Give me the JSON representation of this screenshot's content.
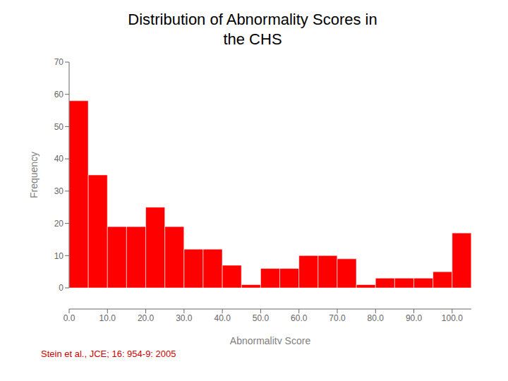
{
  "chart_data": {
    "type": "histogram",
    "title": "Distribution of Abnormality Scores in\nthe CHS",
    "x_label": "Abnormality Score",
    "y_label": "Frequency",
    "bins": [
      0,
      5,
      10,
      15,
      20,
      25,
      30,
      35,
      40,
      45,
      50,
      55,
      60,
      65,
      70,
      75,
      80,
      85,
      90,
      95,
      100,
      105
    ],
    "values": [
      58,
      35,
      19,
      19,
      25,
      19,
      12,
      12,
      7,
      1,
      6,
      6,
      10,
      10,
      9,
      1,
      3,
      3,
      3,
      5,
      17
    ],
    "color": "#FF0000",
    "xlim": [
      0,
      105
    ],
    "xticks": [
      {
        "value": 0,
        "label": "0.0"
      },
      {
        "value": 10,
        "label": "10.0"
      },
      {
        "value": 20,
        "label": "20.0"
      },
      {
        "value": 30,
        "label": "30.0"
      },
      {
        "value": 40,
        "label": "40.0"
      },
      {
        "value": 50,
        "label": "50.0"
      },
      {
        "value": 60,
        "label": "60.0"
      },
      {
        "value": 70,
        "label": "70.0"
      },
      {
        "value": 80,
        "label": "80.0"
      },
      {
        "value": 90,
        "label": "90.0"
      },
      {
        "value": 100,
        "label": "100.0"
      }
    ],
    "ylim": [
      0,
      70
    ],
    "yticks": [
      0,
      10,
      20,
      30,
      40,
      50,
      60,
      70
    ],
    "grid": false,
    "annotations": [
      "Stein et al., JCE; 16: 954-9: 2005"
    ]
  }
}
